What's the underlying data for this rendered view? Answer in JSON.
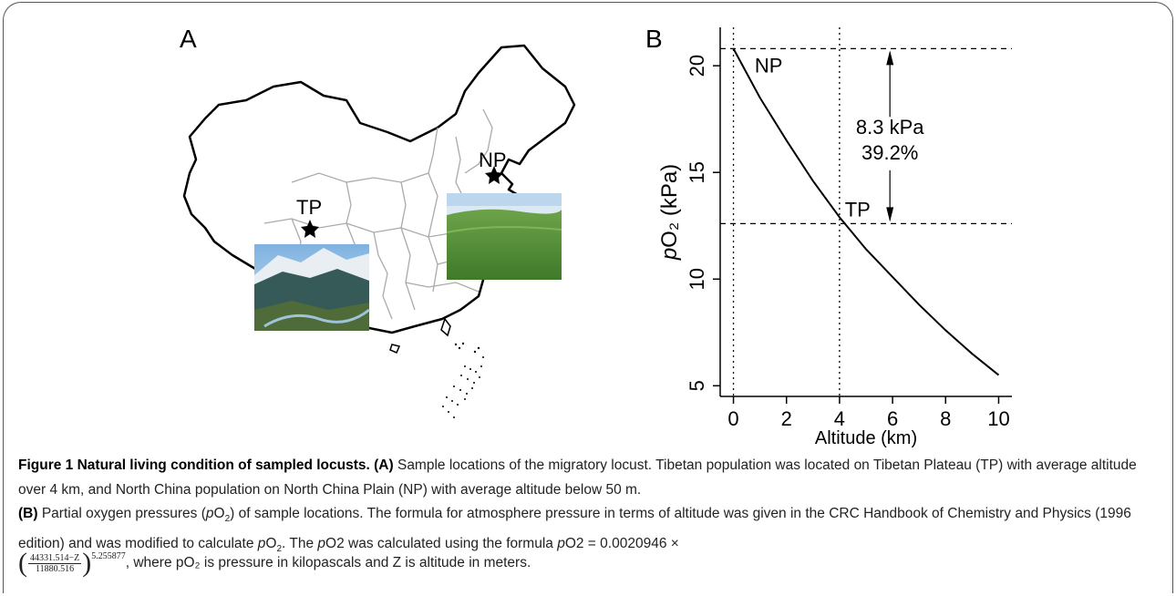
{
  "panels": {
    "a_label": "A",
    "b_label": "B"
  },
  "map": {
    "np_label": "NP",
    "tp_label": "TP"
  },
  "chart_data": {
    "type": "line",
    "xlabel": "Altitude (km)",
    "ylabel_italic": "p",
    "ylabel_rest": "O₂  (kPa)",
    "xlim": [
      -0.5,
      10.5
    ],
    "ylim": [
      4.5,
      21.8
    ],
    "x_ticks": [
      0,
      2,
      4,
      6,
      8,
      10
    ],
    "y_ticks": [
      5,
      10,
      15,
      20
    ],
    "series": [
      {
        "x": [
          0,
          1,
          2,
          3,
          4,
          5,
          6,
          7,
          8,
          9,
          10
        ],
        "values": [
          20.8,
          18.5,
          16.5,
          14.6,
          12.9,
          11.4,
          10.1,
          8.8,
          7.6,
          6.5,
          5.5
        ]
      }
    ],
    "hlines": [
      20.8,
      12.6
    ],
    "vlines": [
      0,
      4
    ],
    "annotations": {
      "np": "NP",
      "tp": "TP",
      "diff_abs": "8.3 kPa",
      "diff_pct": "39.2%"
    }
  },
  "caption": {
    "title": "Figure 1 Natural living condition of sampled locusts.",
    "a_tag": "(A)",
    "a_text": " Sample locations of the migratory locust. Tibetan population was located on Tibetan Plateau (TP) with average altitude over 4 km, and North China population on North China Plain (NP) with average altitude below 50 m.",
    "b_tag": "(B)",
    "b_text_1": " Partial oxygen pressures (",
    "b_text_p": "p",
    "b_text_2": "O",
    "b_text_sub": "2",
    "b_text_3": ") of sample locations. The formula for atmosphere pressure in terms of altitude was given in the CRC Handbook of Chemistry and Physics (1996 edition) and was modified to calculate ",
    "b_text_4": ". The ",
    "b_text_5": "O2 was calculated using the formula ",
    "b_text_6": "O2 = 0.0020946 ×",
    "formula_num": "44331.514−Z",
    "formula_den": "11880.516",
    "formula_exp": "5.255877",
    "formula_tail": ", where pO₂ is pressure in kilopascals and Z is altitude in meters."
  }
}
